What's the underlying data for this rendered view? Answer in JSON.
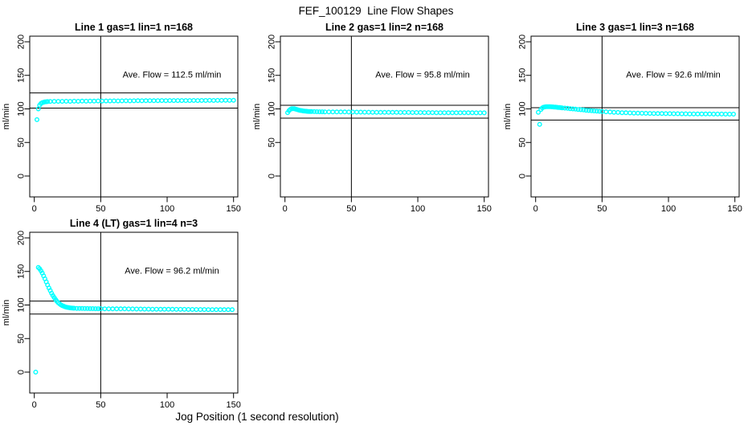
{
  "figure": {
    "title": "FEF_100129  Line Flow Shapes",
    "xlabel": "Jog Position (1 second resolution)",
    "background_color": "#ffffff",
    "point_color": "#00FFFF",
    "line_color": "#000000"
  },
  "chart_data": [
    {
      "type": "scatter",
      "title": "Line 1 gas=1 lin=1 n=168",
      "ylabel": "ml/min",
      "annotation": "Ave. Flow =  112.5  ml/min",
      "ave_flow": 112.5,
      "upper_limit": 123.75,
      "lower_limit": 101.25,
      "vline_x": 50,
      "x_ticks": [
        0,
        50,
        100,
        150
      ],
      "y_ticks": [
        0,
        50,
        100,
        150,
        200
      ],
      "xlim": [
        0,
        150
      ],
      "ylim": [
        0,
        200
      ],
      "grid": false,
      "points": [
        [
          2,
          84
        ],
        [
          3,
          100
        ],
        [
          4,
          105.5
        ],
        [
          5,
          108
        ],
        [
          6,
          109.3
        ],
        [
          7,
          110
        ],
        [
          8,
          110.4
        ],
        [
          9,
          110.7
        ],
        [
          10,
          110.9
        ],
        [
          12,
          111.1
        ],
        [
          15,
          111.2
        ],
        [
          18,
          111.3
        ],
        [
          21,
          111.2
        ],
        [
          24,
          111.4
        ],
        [
          27,
          111.3
        ],
        [
          30,
          111.5
        ],
        [
          33,
          111.4
        ],
        [
          36,
          111.6
        ],
        [
          39,
          111.5
        ],
        [
          42,
          111.7
        ],
        [
          45,
          111.6
        ],
        [
          48,
          111.8
        ],
        [
          51,
          111.7
        ],
        [
          54,
          111.9
        ],
        [
          57,
          111.8
        ],
        [
          60,
          112
        ],
        [
          63,
          111.9
        ],
        [
          66,
          112
        ],
        [
          69,
          112.1
        ],
        [
          72,
          112
        ],
        [
          75,
          112.1
        ],
        [
          78,
          112.2
        ],
        [
          81,
          112.1
        ],
        [
          84,
          112.2
        ],
        [
          87,
          112.3
        ],
        [
          90,
          112.2
        ],
        [
          93,
          112.3
        ],
        [
          96,
          112.4
        ],
        [
          99,
          112.3
        ],
        [
          102,
          112.4
        ],
        [
          105,
          112.4
        ],
        [
          108,
          112.5
        ],
        [
          111,
          112.4
        ],
        [
          114,
          112.5
        ],
        [
          117,
          112.5
        ],
        [
          120,
          112.6
        ],
        [
          123,
          112.5
        ],
        [
          126,
          112.6
        ],
        [
          129,
          112.6
        ],
        [
          132,
          112.7
        ],
        [
          135,
          112.6
        ],
        [
          138,
          112.7
        ],
        [
          141,
          112.7
        ],
        [
          144,
          112.8
        ],
        [
          147,
          112.7
        ],
        [
          150,
          112.8
        ]
      ]
    },
    {
      "type": "scatter",
      "title": "Line 2 gas=1 lin=2 n=168",
      "ylabel": "ml/min",
      "annotation": "Ave. Flow =  95.8  ml/min",
      "ave_flow": 95.8,
      "upper_limit": 105.38,
      "lower_limit": 86.22,
      "vline_x": 50,
      "x_ticks": [
        0,
        50,
        100,
        150
      ],
      "y_ticks": [
        0,
        50,
        100,
        150,
        200
      ],
      "xlim": [
        0,
        150
      ],
      "ylim": [
        0,
        200
      ],
      "grid": false,
      "points": [
        [
          2,
          94.5
        ],
        [
          3,
          97.5
        ],
        [
          4,
          99.3
        ],
        [
          5,
          100.2
        ],
        [
          6,
          100.4
        ],
        [
          7,
          100.2
        ],
        [
          8,
          99.7
        ],
        [
          9,
          99.1
        ],
        [
          10,
          98.5
        ],
        [
          11,
          98
        ],
        [
          12,
          97.6
        ],
        [
          13,
          97.2
        ],
        [
          14,
          96.9
        ],
        [
          15,
          96.7
        ],
        [
          16,
          96.5
        ],
        [
          17,
          96.3
        ],
        [
          18,
          96.2
        ],
        [
          19,
          96.1
        ],
        [
          20,
          96
        ],
        [
          22,
          95.9
        ],
        [
          24,
          95.8
        ],
        [
          26,
          95.7
        ],
        [
          28,
          95.7
        ],
        [
          30,
          95.6
        ],
        [
          33,
          95.6
        ],
        [
          36,
          95.5
        ],
        [
          39,
          95.5
        ],
        [
          42,
          95.4
        ],
        [
          45,
          95.4
        ],
        [
          48,
          95.3
        ],
        [
          51,
          95.3
        ],
        [
          54,
          95.2
        ],
        [
          57,
          95.2
        ],
        [
          60,
          95.1
        ],
        [
          63,
          95.1
        ],
        [
          66,
          95
        ],
        [
          69,
          95
        ],
        [
          72,
          94.9
        ],
        [
          75,
          94.9
        ],
        [
          78,
          94.9
        ],
        [
          81,
          94.8
        ],
        [
          84,
          94.8
        ],
        [
          87,
          94.7
        ],
        [
          90,
          94.7
        ],
        [
          93,
          94.7
        ],
        [
          96,
          94.6
        ],
        [
          99,
          94.6
        ],
        [
          102,
          94.6
        ],
        [
          105,
          94.5
        ],
        [
          108,
          94.5
        ],
        [
          111,
          94.5
        ],
        [
          114,
          94.4
        ],
        [
          117,
          94.4
        ],
        [
          120,
          94.4
        ],
        [
          123,
          94.3
        ],
        [
          126,
          94.3
        ],
        [
          129,
          94.3
        ],
        [
          132,
          94.2
        ],
        [
          135,
          94.2
        ],
        [
          138,
          94.2
        ],
        [
          141,
          94.2
        ],
        [
          144,
          94.1
        ],
        [
          147,
          94.1
        ],
        [
          150,
          94.1
        ]
      ]
    },
    {
      "type": "scatter",
      "title": "Line 3 gas=1 lin=3 n=168",
      "ylabel": "ml/min",
      "annotation": "Ave. Flow =  92.6  ml/min",
      "ave_flow": 92.6,
      "upper_limit": 101.86,
      "lower_limit": 83.34,
      "vline_x": 50,
      "x_ticks": [
        0,
        50,
        100,
        150
      ],
      "y_ticks": [
        0,
        50,
        100,
        150,
        200
      ],
      "xlim": [
        0,
        150
      ],
      "ylim": [
        0,
        200
      ],
      "grid": false,
      "points": [
        [
          2,
          95
        ],
        [
          3,
          77
        ],
        [
          4,
          99
        ],
        [
          5,
          101.5
        ],
        [
          6,
          102.5
        ],
        [
          7,
          103
        ],
        [
          8,
          103.2
        ],
        [
          9,
          103.3
        ],
        [
          10,
          103.3
        ],
        [
          11,
          103.2
        ],
        [
          12,
          103.1
        ],
        [
          13,
          103
        ],
        [
          14,
          102.8
        ],
        [
          15,
          102.6
        ],
        [
          16,
          102.4
        ],
        [
          17,
          102.2
        ],
        [
          18,
          102
        ],
        [
          19,
          101.8
        ],
        [
          20,
          101.6
        ],
        [
          22,
          101.2
        ],
        [
          24,
          100.8
        ],
        [
          26,
          100.4
        ],
        [
          28,
          100
        ],
        [
          30,
          99.6
        ],
        [
          32,
          99.2
        ],
        [
          34,
          98.8
        ],
        [
          36,
          98.4
        ],
        [
          38,
          98
        ],
        [
          40,
          97.6
        ],
        [
          42,
          97.3
        ],
        [
          44,
          97
        ],
        [
          46,
          96.7
        ],
        [
          48,
          96.4
        ],
        [
          50,
          96.1
        ],
        [
          53,
          95.7
        ],
        [
          56,
          95.3
        ],
        [
          59,
          95
        ],
        [
          62,
          94.7
        ],
        [
          65,
          94.4
        ],
        [
          68,
          94.2
        ],
        [
          71,
          94
        ],
        [
          74,
          93.8
        ],
        [
          77,
          93.6
        ],
        [
          80,
          93.5
        ],
        [
          83,
          93.4
        ],
        [
          86,
          93.3
        ],
        [
          89,
          93.2
        ],
        [
          92,
          93.1
        ],
        [
          95,
          93
        ],
        [
          98,
          92.9
        ],
        [
          101,
          92.9
        ],
        [
          104,
          92.8
        ],
        [
          107,
          92.8
        ],
        [
          110,
          92.7
        ],
        [
          113,
          92.7
        ],
        [
          116,
          92.6
        ],
        [
          119,
          92.6
        ],
        [
          122,
          92.5
        ],
        [
          125,
          92.5
        ],
        [
          128,
          92.4
        ],
        [
          131,
          92.4
        ],
        [
          134,
          92.3
        ],
        [
          137,
          92.3
        ],
        [
          140,
          92.3
        ],
        [
          143,
          92.2
        ],
        [
          146,
          92.2
        ],
        [
          149,
          92.2
        ]
      ]
    },
    {
      "type": "scatter",
      "title": "Line 4 (LT) gas=1 lin=4 n=3",
      "ylabel": "ml/min",
      "annotation": "Ave. Flow =  96.2  ml/min",
      "ave_flow": 96.2,
      "upper_limit": 105.82,
      "lower_limit": 86.58,
      "vline_x": 50,
      "x_ticks": [
        0,
        50,
        100,
        150
      ],
      "y_ticks": [
        0,
        50,
        100,
        150,
        200
      ],
      "xlim": [
        0,
        150
      ],
      "ylim": [
        0,
        200
      ],
      "grid": false,
      "points": [
        [
          1,
          0
        ],
        [
          3,
          156
        ],
        [
          4,
          154
        ],
        [
          5,
          151
        ],
        [
          6,
          147.5
        ],
        [
          7,
          143.5
        ],
        [
          8,
          139
        ],
        [
          9,
          134.5
        ],
        [
          10,
          130
        ],
        [
          11,
          125.5
        ],
        [
          12,
          121.5
        ],
        [
          13,
          117.5
        ],
        [
          14,
          114
        ],
        [
          15,
          111
        ],
        [
          16,
          108
        ],
        [
          17,
          105.5
        ],
        [
          18,
          103.5
        ],
        [
          19,
          101.8
        ],
        [
          20,
          100.4
        ],
        [
          21,
          99.2
        ],
        [
          22,
          98.3
        ],
        [
          23,
          97.5
        ],
        [
          24,
          96.9
        ],
        [
          25,
          96.4
        ],
        [
          26,
          96
        ],
        [
          27,
          95.7
        ],
        [
          28,
          95.5
        ],
        [
          29,
          95.3
        ],
        [
          30,
          95.2
        ],
        [
          32,
          95
        ],
        [
          34,
          94.9
        ],
        [
          36,
          94.8
        ],
        [
          38,
          94.7
        ],
        [
          40,
          94.7
        ],
        [
          42,
          94.6
        ],
        [
          44,
          94.6
        ],
        [
          46,
          94.5
        ],
        [
          48,
          94.5
        ],
        [
          50,
          94.5
        ],
        [
          53,
          94.4
        ],
        [
          56,
          94.4
        ],
        [
          59,
          94.3
        ],
        [
          62,
          94.3
        ],
        [
          65,
          94.2
        ],
        [
          68,
          94.2
        ],
        [
          71,
          94.1
        ],
        [
          74,
          94.1
        ],
        [
          77,
          94
        ],
        [
          80,
          94
        ],
        [
          83,
          93.9
        ],
        [
          86,
          93.9
        ],
        [
          89,
          93.8
        ],
        [
          92,
          93.8
        ],
        [
          95,
          93.7
        ],
        [
          98,
          93.7
        ],
        [
          101,
          93.6
        ],
        [
          104,
          93.6
        ],
        [
          107,
          93.5
        ],
        [
          110,
          93.5
        ],
        [
          113,
          93.5
        ],
        [
          116,
          93.4
        ],
        [
          119,
          93.4
        ],
        [
          122,
          93.3
        ],
        [
          125,
          93.3
        ],
        [
          128,
          93.3
        ],
        [
          131,
          93.2
        ],
        [
          134,
          93.2
        ],
        [
          137,
          93.1
        ],
        [
          140,
          93.1
        ],
        [
          143,
          93.1
        ],
        [
          146,
          93
        ],
        [
          149,
          93
        ]
      ]
    }
  ]
}
